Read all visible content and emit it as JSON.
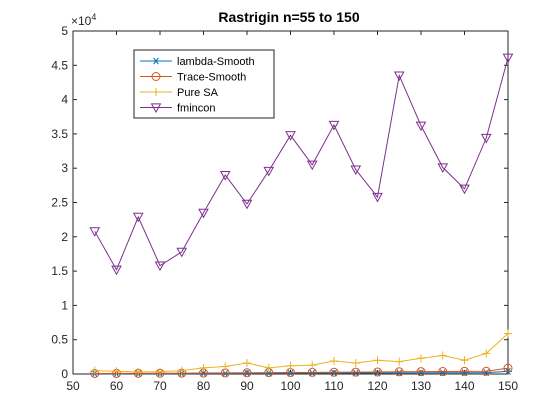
{
  "chart_data": {
    "type": "line",
    "title": "Rastrigin n=55 to 150",
    "xlabel": "",
    "ylabel": "",
    "xlim": [
      50,
      150
    ],
    "ylim": [
      0,
      50000
    ],
    "y_exponent_label": "×10",
    "y_exponent": "4",
    "x_ticks": [
      "50",
      "60",
      "70",
      "80",
      "90",
      "100",
      "110",
      "120",
      "130",
      "140",
      "150"
    ],
    "x_tick_values": [
      50,
      60,
      70,
      80,
      90,
      100,
      110,
      120,
      130,
      140,
      150
    ],
    "y_ticks": [
      "0",
      "0.5",
      "1",
      "1.5",
      "2",
      "2.5",
      "3",
      "3.5",
      "4",
      "4.5",
      "5"
    ],
    "y_tick_values": [
      0,
      5000,
      10000,
      15000,
      20000,
      25000,
      30000,
      35000,
      40000,
      45000,
      50000
    ],
    "grid": false,
    "legend_position": "top-left",
    "x": [
      55,
      60,
      65,
      70,
      75,
      80,
      85,
      90,
      95,
      100,
      105,
      110,
      115,
      120,
      125,
      130,
      135,
      140,
      145,
      150
    ],
    "series": [
      {
        "name": "lambda-Smooth",
        "color": "#0072BD",
        "marker": "asterisk",
        "values": [
          40,
          45,
          50,
          55,
          60,
          70,
          80,
          90,
          100,
          110,
          120,
          130,
          140,
          150,
          160,
          170,
          180,
          190,
          200,
          380
        ]
      },
      {
        "name": "Trace-Smooth",
        "color": "#D95319",
        "marker": "circle",
        "values": [
          80,
          90,
          100,
          110,
          120,
          140,
          160,
          180,
          200,
          220,
          240,
          260,
          280,
          300,
          320,
          340,
          360,
          380,
          400,
          850
        ]
      },
      {
        "name": "Pure SA",
        "color": "#EDB120",
        "marker": "plus",
        "values": [
          500,
          400,
          300,
          350,
          500,
          900,
          1100,
          1600,
          900,
          1200,
          1300,
          1900,
          1600,
          2000,
          1800,
          2300,
          2700,
          2000,
          3000,
          5900
        ]
      },
      {
        "name": "fmincon",
        "color": "#7E2F8E",
        "marker": "triangle-down",
        "values": [
          20800,
          15200,
          22900,
          15800,
          17800,
          23500,
          29000,
          24800,
          29600,
          34800,
          30500,
          36300,
          29800,
          25800,
          43500,
          36200,
          30100,
          27000,
          34400,
          46100
        ]
      }
    ]
  }
}
